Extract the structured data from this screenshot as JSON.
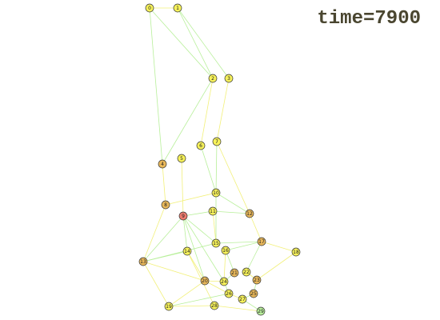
{
  "time_label": "time=7900",
  "colors": {
    "edge_green": "#b8ef9a",
    "edge_yellow": "#f2f07a",
    "node_yellow": "#f7f25a",
    "node_orange": "#e9b85a",
    "node_red": "#ee7c6e",
    "node_green": "#b8ee9a",
    "node_stroke": "#333333"
  },
  "graph": {
    "nodes": [
      {
        "id": "0",
        "status": "yellow"
      },
      {
        "id": "1",
        "status": "yellow"
      },
      {
        "id": "2",
        "status": "yellow"
      },
      {
        "id": "3",
        "status": "yellow"
      },
      {
        "id": "4",
        "status": "orange"
      },
      {
        "id": "5",
        "status": "yellow"
      },
      {
        "id": "6",
        "status": "yellow"
      },
      {
        "id": "7",
        "status": "yellow"
      },
      {
        "id": "8",
        "status": "orange"
      },
      {
        "id": "9",
        "status": "red"
      },
      {
        "id": "10",
        "status": "yellow"
      },
      {
        "id": "11",
        "status": "yellow"
      },
      {
        "id": "12",
        "status": "orange"
      },
      {
        "id": "13",
        "status": "orange"
      },
      {
        "id": "14",
        "status": "yellow"
      },
      {
        "id": "15",
        "status": "yellow"
      },
      {
        "id": "16",
        "status": "yellow"
      },
      {
        "id": "17",
        "status": "orange"
      },
      {
        "id": "18",
        "status": "yellow"
      },
      {
        "id": "19",
        "status": "yellow"
      },
      {
        "id": "20",
        "status": "orange"
      },
      {
        "id": "21",
        "status": "orange"
      },
      {
        "id": "22",
        "status": "yellow"
      },
      {
        "id": "23",
        "status": "orange"
      },
      {
        "id": "24",
        "status": "yellow"
      },
      {
        "id": "25",
        "status": "orange"
      },
      {
        "id": "26",
        "status": "yellow"
      },
      {
        "id": "27",
        "status": "yellow"
      },
      {
        "id": "28",
        "status": "yellow"
      },
      {
        "id": "29",
        "status": "green"
      }
    ],
    "edges": [
      {
        "from": "0",
        "to": "1",
        "color": "yellow"
      },
      {
        "from": "0",
        "to": "2",
        "color": "green"
      },
      {
        "from": "0",
        "to": "4",
        "color": "green"
      },
      {
        "from": "1",
        "to": "2",
        "color": "green"
      },
      {
        "from": "1",
        "to": "3",
        "color": "green"
      },
      {
        "from": "2",
        "to": "4",
        "color": "green"
      },
      {
        "from": "2",
        "to": "6",
        "color": "yellow"
      },
      {
        "from": "3",
        "to": "7",
        "color": "yellow"
      },
      {
        "from": "4",
        "to": "8",
        "color": "yellow"
      },
      {
        "from": "5",
        "to": "9",
        "color": "yellow"
      },
      {
        "from": "6",
        "to": "10",
        "color": "green"
      },
      {
        "from": "7",
        "to": "10",
        "color": "green"
      },
      {
        "from": "7",
        "to": "12",
        "color": "yellow"
      },
      {
        "from": "8",
        "to": "13",
        "color": "yellow"
      },
      {
        "from": "8",
        "to": "10",
        "color": "yellow"
      },
      {
        "from": "9",
        "to": "11",
        "color": "green"
      },
      {
        "from": "9",
        "to": "13",
        "color": "green"
      },
      {
        "from": "9",
        "to": "14",
        "color": "green"
      },
      {
        "from": "9",
        "to": "15",
        "color": "green"
      },
      {
        "from": "9",
        "to": "24",
        "color": "green"
      },
      {
        "from": "9",
        "to": "20",
        "color": "green"
      },
      {
        "from": "10",
        "to": "12",
        "color": "green"
      },
      {
        "from": "10",
        "to": "15",
        "color": "green"
      },
      {
        "from": "11",
        "to": "12",
        "color": "green"
      },
      {
        "from": "11",
        "to": "15",
        "color": "yellow"
      },
      {
        "from": "12",
        "to": "17",
        "color": "yellow"
      },
      {
        "from": "13",
        "to": "14",
        "color": "green"
      },
      {
        "from": "13",
        "to": "15",
        "color": "green"
      },
      {
        "from": "13",
        "to": "19",
        "color": "yellow"
      },
      {
        "from": "13",
        "to": "20",
        "color": "yellow"
      },
      {
        "from": "14",
        "to": "20",
        "color": "yellow"
      },
      {
        "from": "14",
        "to": "28",
        "color": "yellow"
      },
      {
        "from": "15",
        "to": "17",
        "color": "green"
      },
      {
        "from": "16",
        "to": "21",
        "color": "green"
      },
      {
        "from": "16",
        "to": "17",
        "color": "green"
      },
      {
        "from": "16",
        "to": "24",
        "color": "yellow"
      },
      {
        "from": "17",
        "to": "18",
        "color": "yellow"
      },
      {
        "from": "17",
        "to": "22",
        "color": "green"
      },
      {
        "from": "18",
        "to": "23",
        "color": "yellow"
      },
      {
        "from": "19",
        "to": "20",
        "color": "yellow"
      },
      {
        "from": "19",
        "to": "26",
        "color": "green"
      },
      {
        "from": "20",
        "to": "24",
        "color": "yellow"
      },
      {
        "from": "20",
        "to": "26",
        "color": "yellow"
      },
      {
        "from": "21",
        "to": "24",
        "color": "green"
      },
      {
        "from": "22",
        "to": "23",
        "color": "yellow"
      },
      {
        "from": "23",
        "to": "25",
        "color": "green"
      },
      {
        "from": "24",
        "to": "26",
        "color": "green"
      },
      {
        "from": "25",
        "to": "27",
        "color": "green"
      },
      {
        "from": "26",
        "to": "27",
        "color": "yellow"
      },
      {
        "from": "27",
        "to": "29",
        "color": "green"
      },
      {
        "from": "28",
        "to": "29",
        "color": "yellow"
      },
      {
        "from": "28",
        "to": "19",
        "color": "yellow"
      }
    ]
  }
}
